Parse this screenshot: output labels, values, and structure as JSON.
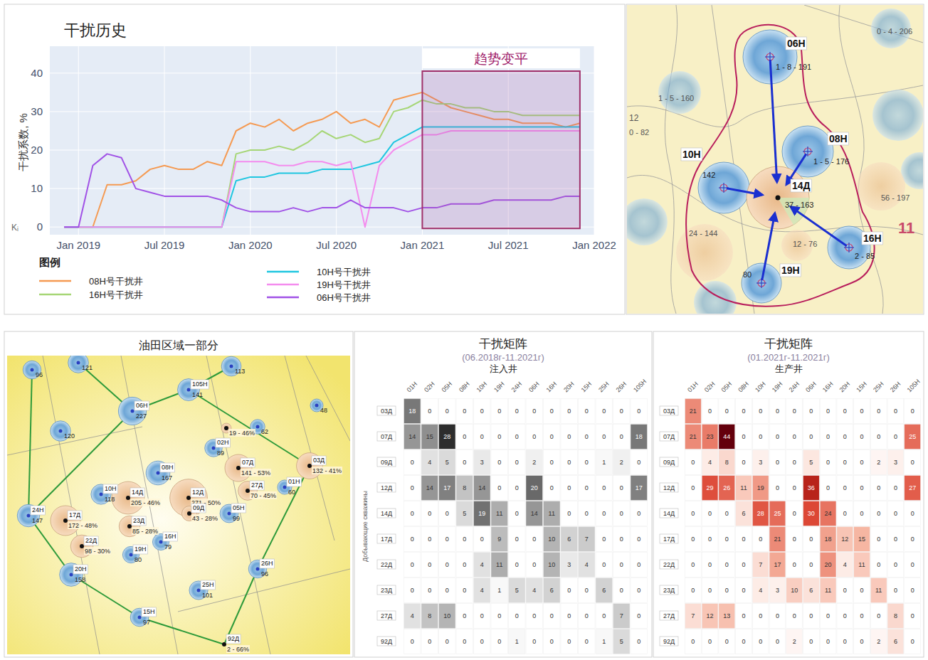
{
  "chart_data": [
    {
      "type": "line",
      "title": "干扰历史",
      "ylabel": "干扰系数, %",
      "ylabel_symbol": "Kᵢ",
      "x": [
        "2018-12",
        "2019-01",
        "2019-02",
        "2019-03",
        "2019-04",
        "2019-05",
        "2019-06",
        "2019-07",
        "2019-08",
        "2019-09",
        "2019-10",
        "2019-11",
        "2019-12",
        "2020-01",
        "2020-02",
        "2020-03",
        "2020-04",
        "2020-05",
        "2020-06",
        "2020-07",
        "2020-08",
        "2020-09",
        "2020-10",
        "2020-11",
        "2020-12",
        "2021-01",
        "2021-02",
        "2021-03",
        "2021-04",
        "2021-05",
        "2021-06",
        "2021-07",
        "2021-08",
        "2021-09",
        "2021-10",
        "2021-11",
        "2021-12"
      ],
      "series": [
        {
          "name": "08H号干扰井",
          "color": "#f59a52",
          "values": [
            0,
            0,
            0,
            11,
            11,
            12,
            15,
            16,
            15,
            15,
            17,
            16,
            25,
            27,
            26,
            28,
            25,
            27,
            28,
            30,
            27,
            28,
            26,
            33,
            34,
            35,
            33,
            31,
            30,
            29,
            28,
            28,
            27,
            27,
            27,
            26,
            27
          ]
        },
        {
          "name": "16H号干扰井",
          "color": "#a6d676",
          "values": [
            0,
            0,
            0,
            0,
            0,
            0,
            0,
            0,
            0,
            0,
            0,
            0,
            19,
            20,
            20,
            21,
            20,
            22,
            25,
            23,
            24,
            22,
            23,
            30,
            31,
            33,
            32,
            32,
            31,
            31,
            30,
            30,
            29,
            29,
            29,
            29,
            29
          ]
        },
        {
          "name": "10H号干扰井",
          "color": "#1fc6e0",
          "values": [
            0,
            0,
            0,
            0,
            0,
            0,
            0,
            0,
            0,
            0,
            0,
            0,
            12,
            13,
            13,
            14,
            14,
            14,
            15,
            15,
            15,
            16,
            17,
            22,
            24,
            26,
            26,
            26,
            26,
            26,
            26,
            26,
            26,
            26,
            26,
            26,
            26
          ]
        },
        {
          "name": "19H号干扰井",
          "color": "#f48cee",
          "values": [
            0,
            0,
            0,
            0,
            0,
            0,
            0,
            0,
            0,
            0,
            0,
            0,
            17,
            17,
            17,
            16,
            16,
            17,
            17,
            16,
            17,
            0,
            16,
            20,
            22,
            24,
            24,
            25,
            25,
            25,
            25,
            25,
            25,
            25,
            25,
            25,
            25
          ]
        },
        {
          "name": "06H号干扰井",
          "color": "#a152e6",
          "values": [
            0,
            0,
            16,
            19,
            18,
            10,
            9,
            8,
            8,
            8,
            8,
            7,
            5,
            4,
            4,
            4,
            5,
            4,
            5,
            5,
            7,
            5,
            5,
            5,
            4,
            5,
            5,
            6,
            6,
            6,
            7,
            7,
            7,
            7,
            7,
            8,
            8
          ]
        }
      ],
      "xlim": [
        "2018-11",
        "2022-01"
      ],
      "xticks": [
        {
          "value": "2019-01",
          "label": "Jan 2019"
        },
        {
          "value": "2019-07",
          "label": "Jul 2019"
        },
        {
          "value": "2020-01",
          "label": "Jan 2020"
        },
        {
          "value": "2020-07",
          "label": "Jul 2020"
        },
        {
          "value": "2021-01",
          "label": "Jan 2021"
        },
        {
          "value": "2021-07",
          "label": "Jul 2021"
        },
        {
          "value": "2022-01",
          "label": "Jan 2022"
        }
      ],
      "ylim": [
        -2,
        47
      ],
      "yticks": [
        0,
        10,
        20,
        30,
        40
      ],
      "grid": true,
      "legend": "bottom",
      "legend_title": "图例",
      "annotations": [
        {
          "text": "趋势变平",
          "x": [
            "2021-01",
            "2021-12"
          ]
        }
      ]
    },
    {
      "type": "heatmap",
      "title": "干扰矩阵",
      "subtitle": "(06.2018г-11.2021г)",
      "xlabel": "注入井",
      "ylabel": "Добывающие скважины",
      "x": [
        "01H",
        "02H",
        "05H",
        "08H",
        "10H",
        "19H",
        "24H",
        "06H",
        "16H",
        "20H",
        "15H",
        "25H",
        "26H",
        "105H"
      ],
      "y": [
        "03Д",
        "07Д",
        "09Д",
        "12Д",
        "14Д",
        "17Д",
        "22Д",
        "23Д",
        "27Д",
        "92Д"
      ],
      "values": [
        [
          18,
          0,
          0,
          0,
          0,
          0,
          0,
          0,
          0,
          0,
          0,
          0,
          0,
          0
        ],
        [
          14,
          15,
          28,
          0,
          0,
          0,
          0,
          0,
          0,
          0,
          0,
          0,
          0,
          18
        ],
        [
          0,
          4,
          5,
          0,
          3,
          0,
          0,
          2,
          0,
          0,
          0,
          1,
          2,
          0
        ],
        [
          0,
          14,
          17,
          8,
          14,
          0,
          0,
          20,
          0,
          0,
          0,
          0,
          0,
          17
        ],
        [
          0,
          0,
          0,
          5,
          19,
          11,
          0,
          14,
          11,
          0,
          0,
          0,
          0,
          0
        ],
        [
          0,
          0,
          0,
          0,
          0,
          9,
          0,
          0,
          10,
          6,
          7,
          0,
          0,
          0
        ],
        [
          0,
          0,
          0,
          0,
          4,
          11,
          0,
          0,
          10,
          3,
          4,
          0,
          0,
          0
        ],
        [
          0,
          0,
          0,
          0,
          4,
          1,
          5,
          4,
          6,
          0,
          0,
          6,
          0,
          0
        ],
        [
          4,
          8,
          10,
          0,
          0,
          0,
          0,
          0,
          0,
          0,
          0,
          0,
          7,
          0
        ],
        [
          0,
          0,
          0,
          0,
          0,
          0,
          1,
          0,
          0,
          0,
          0,
          1,
          5,
          0
        ]
      ],
      "color": "#333333",
      "data_labels": true
    },
    {
      "type": "heatmap",
      "title": "干扰矩阵",
      "subtitle": "(01.2021г-11.2021г)",
      "xlabel": "生产井",
      "x": [
        "01H",
        "02H",
        "05H",
        "08H",
        "10H",
        "19H",
        "24H",
        "06H",
        "16H",
        "20H",
        "15H",
        "25H",
        "26H",
        "105H"
      ],
      "y": [
        "03Д",
        "07Д",
        "09Д",
        "12Д",
        "14Д",
        "17Д",
        "22Д",
        "23Д",
        "27Д",
        "92Д"
      ],
      "values": [
        [
          21,
          0,
          0,
          0,
          0,
          0,
          0,
          0,
          0,
          0,
          0,
          0,
          0,
          0
        ],
        [
          21,
          23,
          44,
          0,
          0,
          0,
          0,
          0,
          0,
          0,
          0,
          0,
          0,
          25
        ],
        [
          0,
          4,
          8,
          0,
          3,
          0,
          0,
          5,
          0,
          0,
          0,
          2,
          3,
          0
        ],
        [
          0,
          29,
          26,
          11,
          19,
          0,
          0,
          36,
          0,
          0,
          0,
          0,
          0,
          27
        ],
        [
          0,
          0,
          0,
          6,
          28,
          25,
          0,
          30,
          24,
          0,
          0,
          0,
          0,
          0
        ],
        [
          0,
          0,
          0,
          0,
          0,
          21,
          0,
          0,
          18,
          12,
          15,
          0,
          0,
          0
        ],
        [
          0,
          0,
          0,
          0,
          7,
          17,
          0,
          0,
          20,
          4,
          11,
          0,
          0,
          0
        ],
        [
          0,
          0,
          0,
          0,
          4,
          3,
          10,
          6,
          11,
          0,
          0,
          11,
          0,
          0
        ],
        [
          7,
          12,
          13,
          0,
          0,
          0,
          0,
          0,
          0,
          0,
          0,
          0,
          8,
          0
        ],
        [
          0,
          0,
          0,
          0,
          0,
          0,
          2,
          0,
          0,
          0,
          0,
          2,
          6,
          0
        ]
      ],
      "color": "#c81e1e",
      "data_labels": true
    }
  ],
  "maps": [
    {
      "wells": [
        {
          "name": "06H",
          "label": "1 - 8 - 191",
          "kind": "injector"
        },
        {
          "name": "08H",
          "label": "1 - 5 - 176",
          "kind": "injector"
        },
        {
          "name": "10H",
          "label": "142",
          "kind": "injector"
        },
        {
          "name": "14Д",
          "label": "37 - 163",
          "kind": "producer"
        },
        {
          "name": "16H",
          "label": "2 - 85",
          "kind": "injector"
        },
        {
          "name": "19H",
          "label": "80",
          "kind": "injector"
        }
      ],
      "arrows": [
        {
          "from": "06H",
          "to": "14Д"
        },
        {
          "from": "08H",
          "to": "14Д"
        },
        {
          "from": "10H",
          "to": "14Д"
        },
        {
          "from": "16H",
          "to": "14Д"
        },
        {
          "from": "19H",
          "to": "14Д"
        }
      ],
      "background_labels": [
        "11",
        "12",
        "0 - 82",
        "24 - 144",
        "12 - 76",
        "56 - 197",
        "0 - 4 - 206",
        "1 - 5 - 160"
      ]
    },
    {
      "title": "油田区域一部分",
      "wells": [
        {
          "name": "06H",
          "value": 227,
          "kind": "injector"
        },
        {
          "name": "105H",
          "value": 141,
          "kind": "injector"
        },
        {
          "name": "08H",
          "value": 167,
          "kind": "injector"
        },
        {
          "name": "10H",
          "value": 118,
          "kind": "injector"
        },
        {
          "name": "24H",
          "value": 147,
          "kind": "injector"
        },
        {
          "name": "02H",
          "value": 89,
          "kind": "injector"
        },
        {
          "name": "05H",
          "value": 99,
          "kind": "injector"
        },
        {
          "name": "19H",
          "value": 80,
          "kind": "injector"
        },
        {
          "name": "16H",
          "value": 79,
          "kind": "injector"
        },
        {
          "name": "01H",
          "value": 60,
          "kind": "injector"
        },
        {
          "name": "26H",
          "value": 96,
          "kind": "injector"
        },
        {
          "name": "20H",
          "value": 158,
          "kind": "injector"
        },
        {
          "name": "25H",
          "value": 101,
          "kind": "injector"
        },
        {
          "name": "15H",
          "value": 97,
          "kind": "injector"
        },
        {
          "value": 96,
          "kind": "injector"
        },
        {
          "value": 121,
          "kind": "injector"
        },
        {
          "value": 113,
          "kind": "injector"
        },
        {
          "value": 120,
          "kind": "injector"
        },
        {
          "value": 62,
          "kind": "injector"
        },
        {
          "value": 48,
          "kind": "injector"
        },
        {
          "name": "14Д",
          "value": 205,
          "label": "205 - 46%",
          "kind": "producer"
        },
        {
          "name": "12Д",
          "value": 271,
          "label": "271 - 50%",
          "kind": "producer"
        },
        {
          "name": "07Д",
          "value": 141,
          "label": "141 - 53%",
          "kind": "producer"
        },
        {
          "name": "27Д",
          "value": 70,
          "label": "70 - 45%",
          "kind": "producer"
        },
        {
          "name": "03Д",
          "value": 132,
          "label": "132 - 41%",
          "kind": "producer"
        },
        {
          "name": "17Д",
          "value": 172,
          "label": "172 - 48%",
          "kind": "producer"
        },
        {
          "name": "23Д",
          "value": 85,
          "label": "85 - 28%",
          "kind": "producer"
        },
        {
          "name": "09Д",
          "value": 43,
          "label": "43 - 28%",
          "kind": "producer"
        },
        {
          "name": "22Д",
          "value": 98,
          "label": "98 - 30%",
          "kind": "producer"
        },
        {
          "name": "92Д",
          "value": 2,
          "label": "2 - 66%",
          "kind": "producer"
        },
        {
          "value": 19,
          "label": "19 - 46%",
          "kind": "producer"
        }
      ]
    }
  ]
}
